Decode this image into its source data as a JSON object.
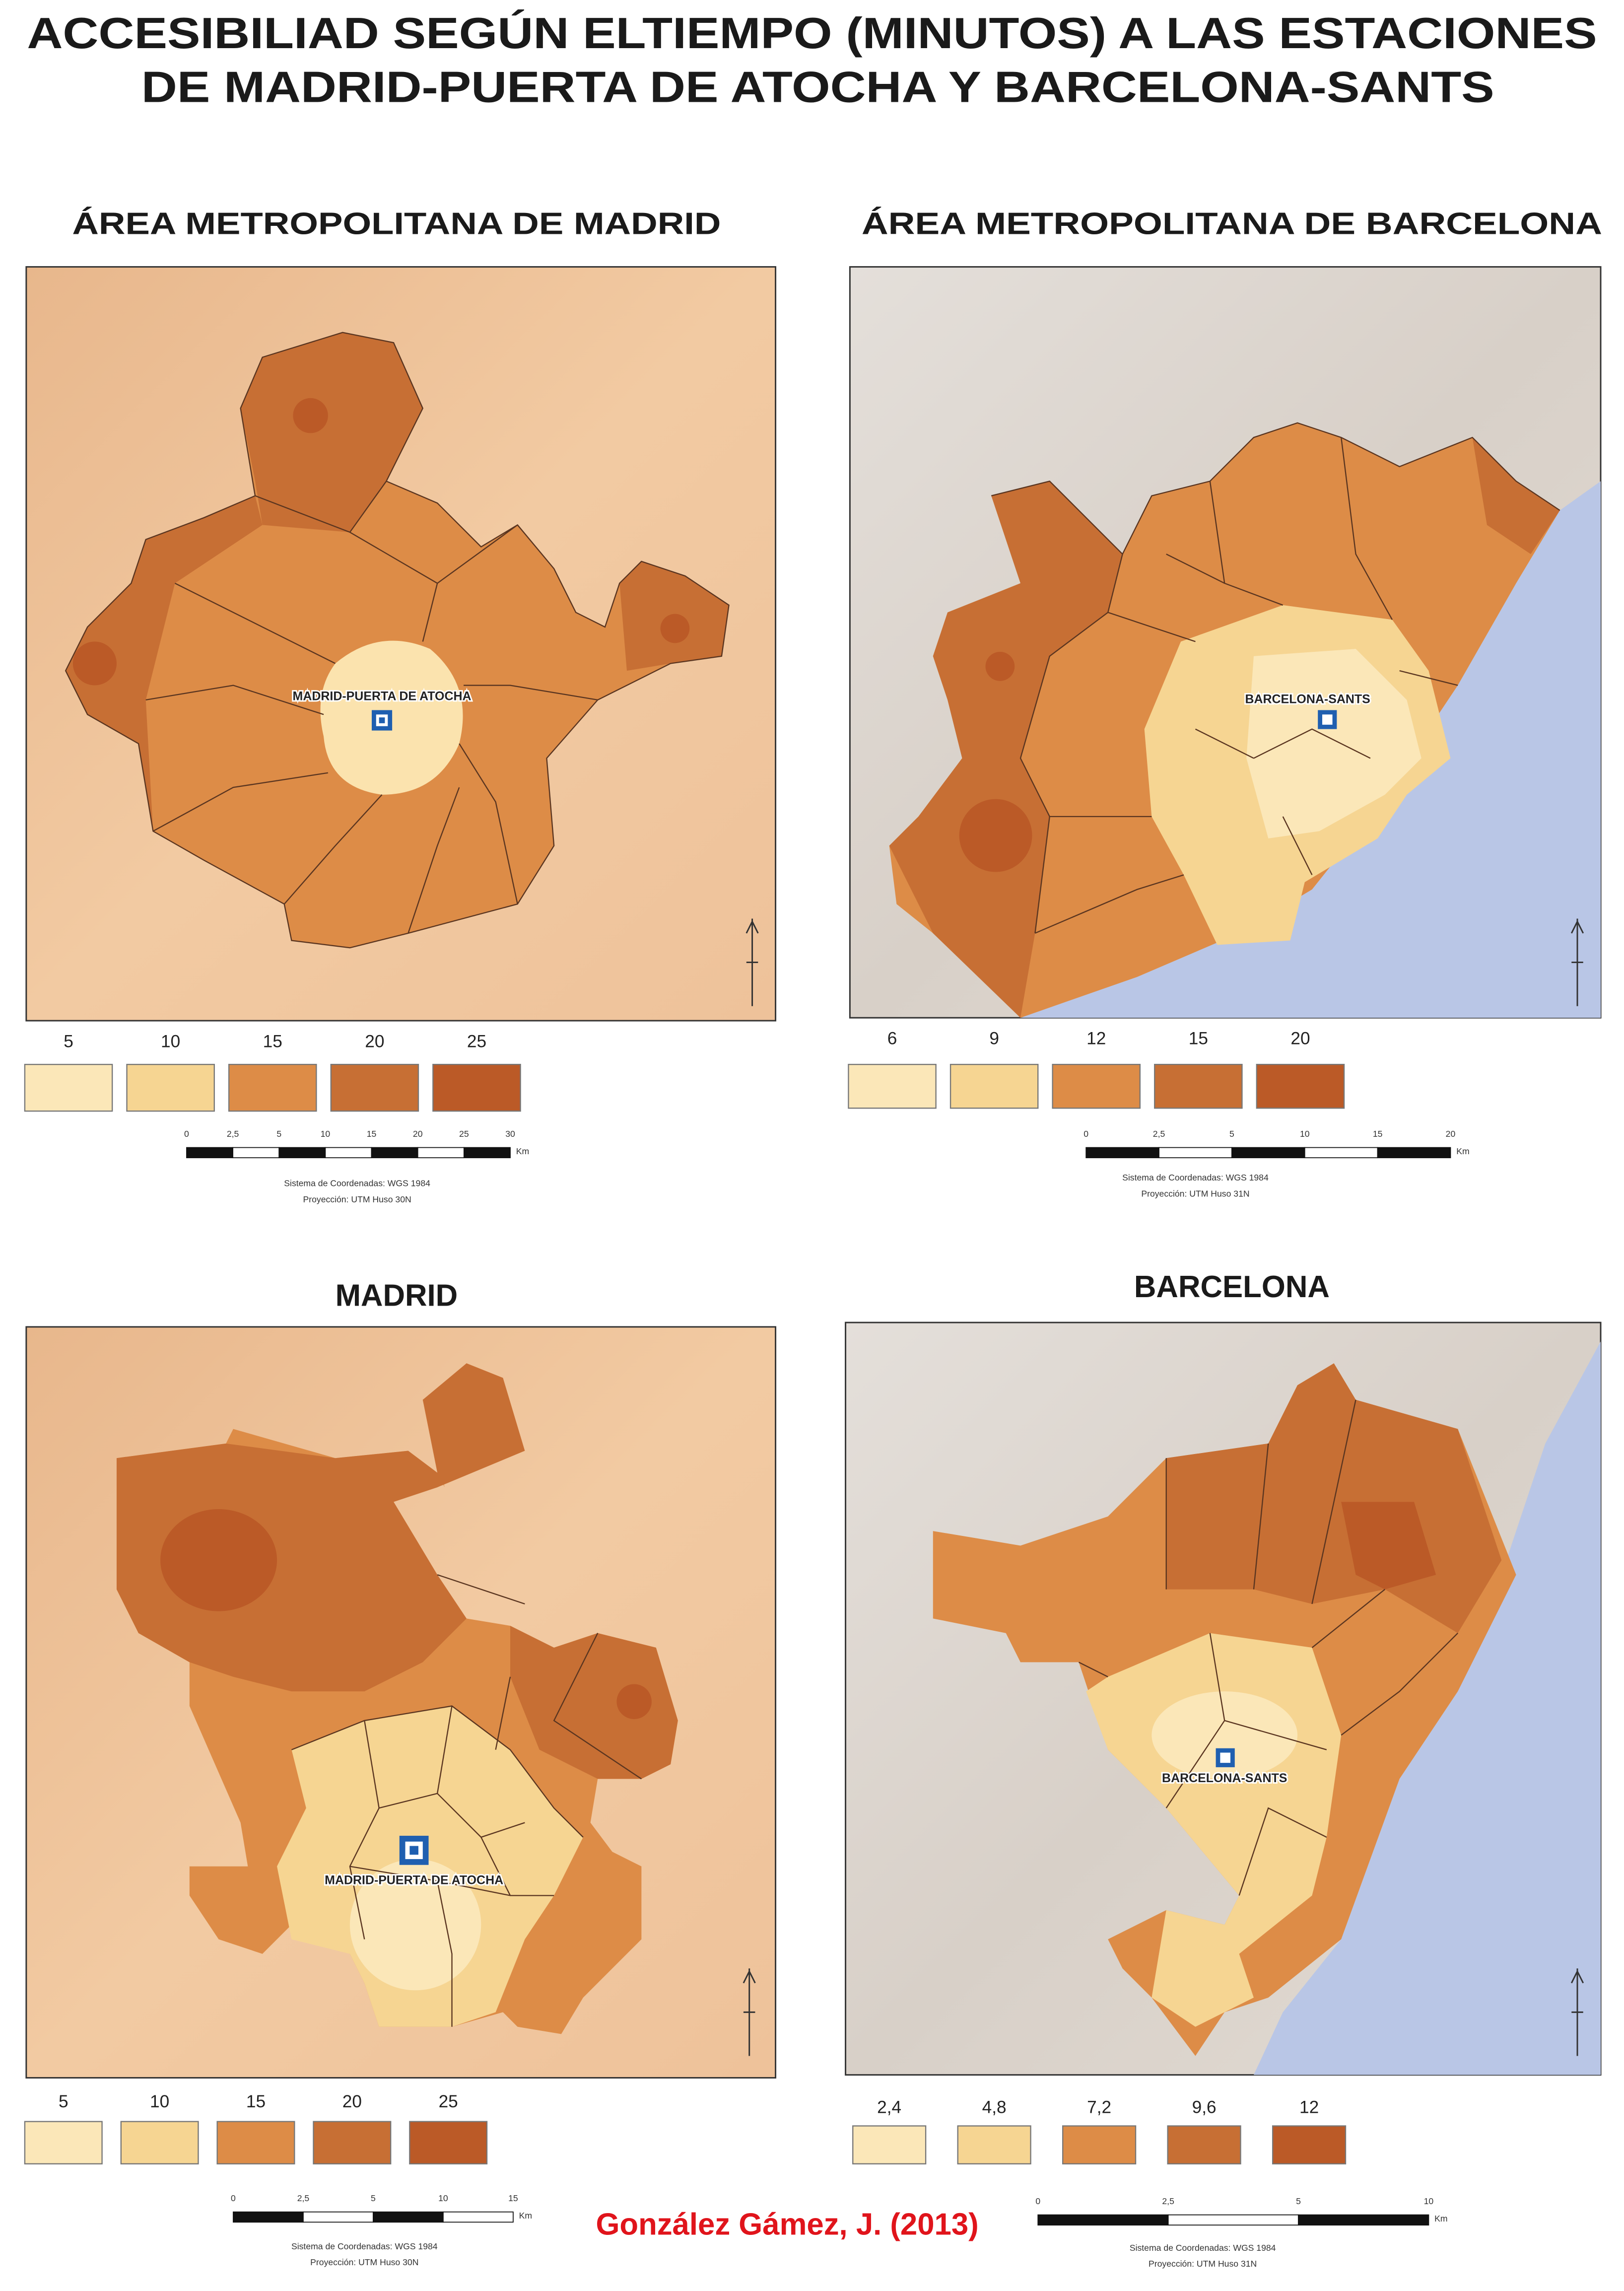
{
  "title": [
    "ACCESIBILIAD SEGÚN ELTIEMPO (MINUTOS) A LAS ESTACIONES",
    "DE MADRID-PUERTA DE ATOCHA Y BARCELONA-SANTS"
  ],
  "panels": [
    {
      "title": "ÁREA METROPOLITANA DE MADRID",
      "station": "MADRID-PUERTA DE ATOCHA",
      "legend": [
        "5",
        "10",
        "15",
        "20",
        "25"
      ],
      "scale": [
        "0",
        "2,5",
        "5",
        "10",
        "15",
        "20",
        "25",
        "30"
      ],
      "scale_unit": "Km",
      "coordinates": [
        "Sistema de Coordenadas: WGS 1984",
        "Proyección: UTM Huso 30N"
      ]
    },
    {
      "title": "ÁREA METROPOLITANA DE BARCELONA",
      "station": "BARCELONA-SANTS",
      "legend": [
        "6",
        "9",
        "12",
        "15",
        "20"
      ],
      "scale": [
        "0",
        "2,5",
        "5",
        "10",
        "15",
        "20"
      ],
      "scale_unit": "Km",
      "coordinates": [
        "Sistema de Coordenadas: WGS 1984",
        "Proyección: UTM Huso 31N"
      ]
    },
    {
      "title": "MADRID",
      "station": "MADRID-PUERTA DE ATOCHA",
      "legend": [
        "5",
        "10",
        "15",
        "20",
        "25"
      ],
      "scale": [
        "0",
        "2,5",
        "5",
        "10",
        "15"
      ],
      "scale_unit": "Km",
      "coordinates": [
        "Sistema de Coordenadas: WGS 1984",
        "Proyección: UTM Huso 30N"
      ]
    },
    {
      "title": "BARCELONA",
      "station": "BARCELONA-SANTS",
      "legend": [
        "2,4",
        "4,8",
        "7,2",
        "9,6",
        "12"
      ],
      "scale": [
        "0",
        "2,5",
        "5",
        "10"
      ],
      "scale_unit": "Km",
      "coordinates": [
        "Sistema de Coordenadas: WGS 1984",
        "Proyección: UTM Huso 31N"
      ]
    }
  ],
  "credit": "González Gámez, J. (2013)"
}
